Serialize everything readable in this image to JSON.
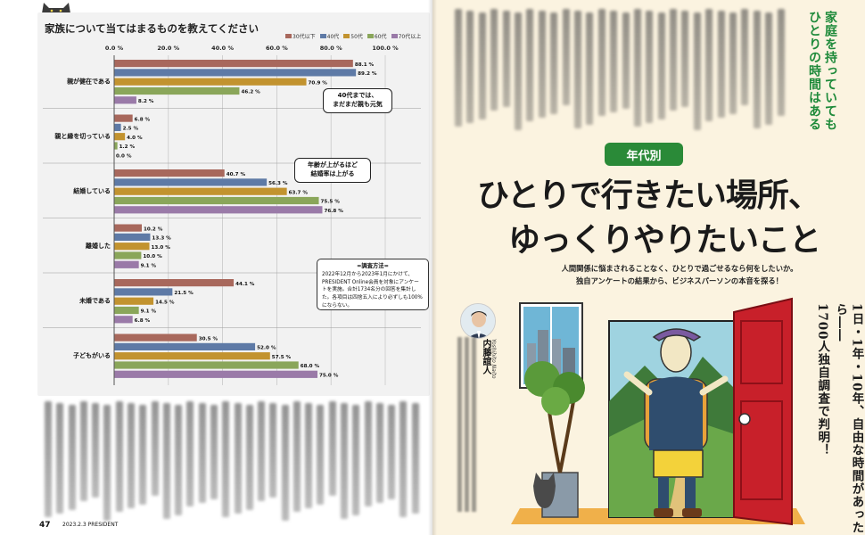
{
  "left_page": {
    "folio": "47",
    "magazine_line": "2023.2.3 PRESIDENT"
  },
  "chart": {
    "title": "家族について当てはまるものを教えてください"
  },
  "chart_data": {
    "type": "bar",
    "orientation": "horizontal",
    "title": "家族について当てはまるものを教えてください",
    "categories": [
      "親が健在である",
      "親と縁を切っている",
      "結婚している",
      "離婚した",
      "未婚である",
      "子どもがいる"
    ],
    "series": [
      {
        "name": "30代以下",
        "color": "#a8685c",
        "values": [
          88.1,
          6.8,
          40.7,
          10.2,
          44.1,
          30.5
        ]
      },
      {
        "name": "40代",
        "color": "#5e7aa6",
        "values": [
          89.2,
          2.5,
          56.3,
          13.3,
          21.5,
          52.0
        ]
      },
      {
        "name": "50代",
        "color": "#c2932f",
        "values": [
          70.9,
          4.0,
          63.7,
          13.0,
          14.5,
          57.5
        ]
      },
      {
        "name": "60代",
        "color": "#8aa65a",
        "values": [
          46.2,
          1.2,
          75.5,
          10.0,
          9.1,
          68.0
        ]
      },
      {
        "name": "70代以上",
        "color": "#9a7aa8",
        "values": [
          8.2,
          0.0,
          76.8,
          9.1,
          6.8,
          75.0
        ]
      }
    ],
    "value_labels": [
      [
        "88.1 %",
        "89.2 %",
        "70.9 %",
        "46.2 %",
        "8.2 %"
      ],
      [
        "6.8 %",
        "2.5 %",
        "4.0 %",
        "1.2 %",
        "0.0 %"
      ],
      [
        "40.7 %",
        "56.3 %",
        "63.7 %",
        "75.5 %",
        "76.8 %"
      ],
      [
        "10.2 %",
        "13.3 %",
        "13.0 %",
        "10.0 %",
        "9.1 %"
      ],
      [
        "44.1 %",
        "21.5 %",
        "14.5 %",
        "9.1 %",
        "6.8 %"
      ],
      [
        "30.5 %",
        "52.0 %",
        "57.5 %",
        "68.0 %",
        "75.0 %"
      ]
    ],
    "x_ticks": [
      "0.0 %",
      "20.0 %",
      "40.0 %",
      "60.0 %",
      "80.0 %",
      "100.0 %"
    ],
    "xlim": [
      0,
      100
    ],
    "grid": true,
    "legend": "top-right",
    "annotations": [
      "40代までは、\nまだまだ親も元気",
      "年齢が上がるほど\n結婚率は上がる"
    ],
    "survey_note": {
      "title": "=調査方法=",
      "body": "2022年12月から2023年1月にかけて、PRESIDENT Online会員を対象にアンケートを実施。合計1734名分の回答を集計した。各項目は四捨五入により必ずしも100%にならない。"
    }
  },
  "right_page": {
    "side_heading": [
      "家庭を持っていても",
      "ひとりの時間はある"
    ],
    "badge": "年代別",
    "headline_line1": "ひとりで行きたい場所、",
    "headline_line2": "ゆっくりやりたいこと",
    "lede_line1": "人間関係に悩まされることなく、ひとりで過ごせるなら何をしたいか。",
    "lede_line2": "独自アンケートの結果から、ビジネスパーソンの本音を探る！",
    "vertical_copy": [
      "1日・1年・10年、自由な時間があったら――",
      "1700人独自調査で判明！"
    ],
    "author_name": "内藤誼人",
    "author_roman": "Yoshihito Naito"
  },
  "colors": {
    "accent_green": "#2a8a38",
    "door_red": "#c8202a",
    "page_cream": "#fbf3e0"
  }
}
